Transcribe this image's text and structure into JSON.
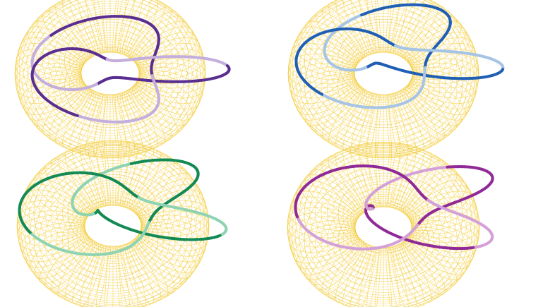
{
  "figure": {
    "torus_color": "#f5d24a",
    "torus_shadow": "#e6bb22",
    "panels": [
      {
        "id": "panel-1",
        "knot": "trefoil-knot",
        "strong_color": "#5a2e91",
        "faded_color": "#c4aedb"
      },
      {
        "id": "panel-2",
        "knot": "trefoil-knot",
        "strong_color": "#1f5fb4",
        "faded_color": "#a6c4e6"
      },
      {
        "id": "panel-3",
        "knot": "trefoil-knot",
        "strong_color": "#138a55",
        "faded_color": "#8ed3b2"
      },
      {
        "id": "panel-4",
        "knot": "trefoil-knot",
        "strong_color": "#8f2a96",
        "faded_color": "#d4a0d8"
      }
    ]
  }
}
